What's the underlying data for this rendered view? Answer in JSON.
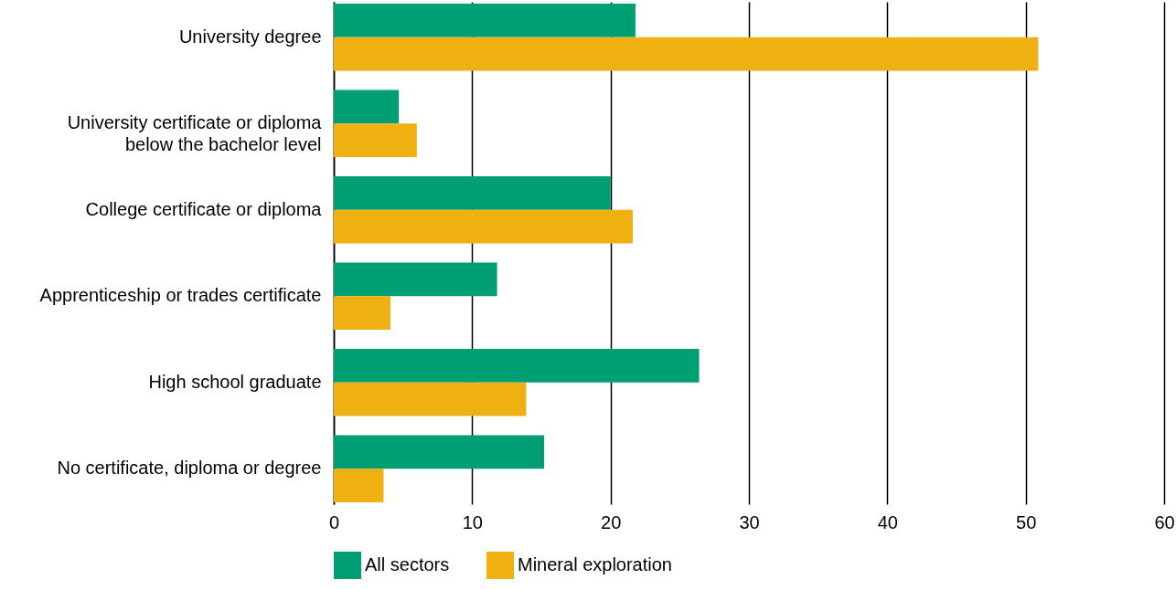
{
  "chart_data": {
    "type": "bar",
    "orientation": "horizontal",
    "categories": [
      "University degree",
      "University certificate or diploma\nbelow the bachelor level",
      "College certificate or diploma",
      "Apprenticeship or trades certificate",
      "High school graduate",
      "No certificate, diploma or degree"
    ],
    "series": [
      {
        "name": "All sectors",
        "color": "#009e73",
        "values": [
          21.8,
          4.7,
          20.0,
          11.8,
          26.4,
          15.2
        ]
      },
      {
        "name": "Mineral exploration",
        "color": "#eeb111",
        "values": [
          50.9,
          6.0,
          21.6,
          4.1,
          13.9,
          3.6
        ]
      }
    ],
    "xlim": [
      0,
      60
    ],
    "xticks": [
      0,
      10,
      20,
      30,
      40,
      50,
      60
    ],
    "grid": "x",
    "legend": "bottom left"
  }
}
